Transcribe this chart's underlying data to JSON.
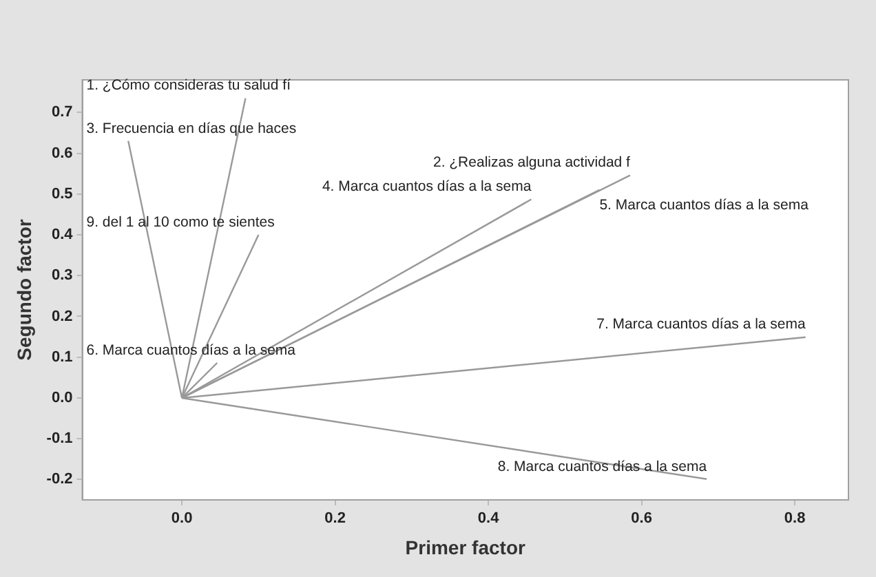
{
  "chart_data": {
    "type": "line",
    "xlabel": "Primer factor",
    "ylabel": "Segundo factor",
    "xlim": [
      -0.13,
      0.87
    ],
    "ylim": [
      -0.25,
      0.78
    ],
    "xticks": [
      {
        "value": 0,
        "label": "0.0"
      },
      {
        "value": 0.2,
        "label": "0.2"
      },
      {
        "value": 0.4,
        "label": "0.4"
      },
      {
        "value": 0.6,
        "label": "0.6"
      },
      {
        "value": 0.8,
        "label": "0.8"
      }
    ],
    "yticks": [
      {
        "value": -0.2,
        "label": "-0.2"
      },
      {
        "value": -0.1,
        "label": "-0.1"
      },
      {
        "value": 0,
        "label": "0.0"
      },
      {
        "value": 0.1,
        "label": "0.1"
      },
      {
        "value": 0.2,
        "label": "0.2"
      },
      {
        "value": 0.3,
        "label": "0.3"
      },
      {
        "value": 0.4,
        "label": "0.4"
      },
      {
        "value": 0.5,
        "label": "0.5"
      },
      {
        "value": 0.6,
        "label": "0.6"
      },
      {
        "value": 0.7,
        "label": "0.7"
      }
    ],
    "grid": false,
    "legend": false,
    "marker": "none",
    "line_style": "solid",
    "series": [
      {
        "name": "1. ¿Cómo consideras tu salud fí",
        "color": "#999999",
        "x": [
          0,
          0.083
        ],
        "values": [
          0,
          0.735
        ]
      },
      {
        "name": "2. ¿Realizas alguna actividad f",
        "color": "#999999",
        "x": [
          0,
          0.585
        ],
        "values": [
          0,
          0.546
        ]
      },
      {
        "name": "3. Frecuencia en días que haces",
        "color": "#999999",
        "x": [
          0,
          -0.07
        ],
        "values": [
          0,
          0.63
        ]
      },
      {
        "name": "4. Marca cuantos días a la sema",
        "color": "#999999",
        "x": [
          0,
          0.456
        ],
        "values": [
          0,
          0.487
        ]
      },
      {
        "name": "5. Marca cuantos días a la sema",
        "color": "#999999",
        "x": [
          0,
          0.545
        ],
        "values": [
          0,
          0.51
        ]
      },
      {
        "name": "6. Marca cuantos días a la sema",
        "color": "#999999",
        "x": [
          0,
          0.046
        ],
        "values": [
          0,
          0.086
        ]
      },
      {
        "name": "7. Marca cuantos días a la sema",
        "color": "#999999",
        "x": [
          0,
          0.814
        ],
        "values": [
          0,
          0.149
        ]
      },
      {
        "name": "8. Marca cuantos días a la sema",
        "color": "#999999",
        "x": [
          0,
          0.685
        ],
        "values": [
          0,
          -0.199
        ]
      },
      {
        "name": "9. del 1 al 10 como te sientes",
        "color": "#999999",
        "x": [
          0,
          0.1
        ],
        "values": [
          0,
          0.4
        ]
      }
    ]
  }
}
